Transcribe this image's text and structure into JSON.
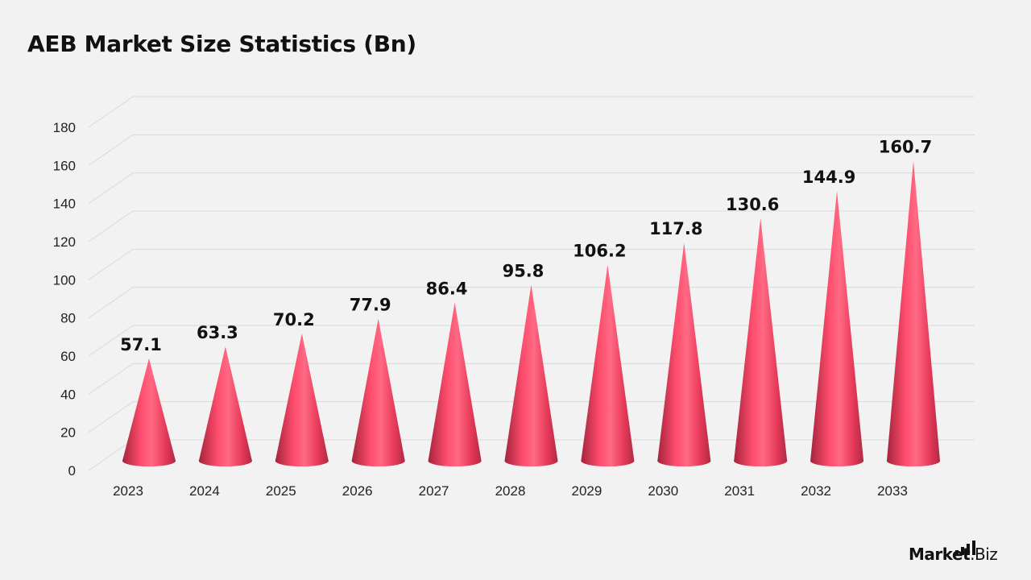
{
  "chart_data": {
    "type": "bar",
    "title": "AEB Market Size Statistics (Bn)",
    "categories": [
      "2023",
      "2024",
      "2025",
      "2026",
      "2027",
      "2028",
      "2029",
      "2030",
      "2031",
      "2032",
      "2033"
    ],
    "values": [
      57.1,
      63.3,
      70.2,
      77.9,
      86.4,
      95.8,
      106.2,
      117.8,
      130.6,
      144.9,
      160.7
    ],
    "data_labels": [
      "57.1",
      "63.3",
      "70.2",
      "77.9",
      "86.4",
      "95.8",
      "106.2",
      "117.8",
      "130.6",
      "144.9",
      "160.7"
    ],
    "ylim": [
      0,
      180
    ],
    "yticks": [
      0,
      20,
      40,
      60,
      80,
      100,
      120,
      140,
      160,
      180
    ],
    "xlabel": "",
    "ylabel": "",
    "grid": true,
    "legend": "none",
    "mark_shape": "cone",
    "colors": {
      "mark": "#ff4d6d",
      "mark_dark": "#a5243c",
      "grid": "#d9d9d9",
      "text": "#111111",
      "background": "#f2f2f2"
    }
  },
  "brand": {
    "name_bold": "Market",
    "name_rest": ".Biz"
  }
}
